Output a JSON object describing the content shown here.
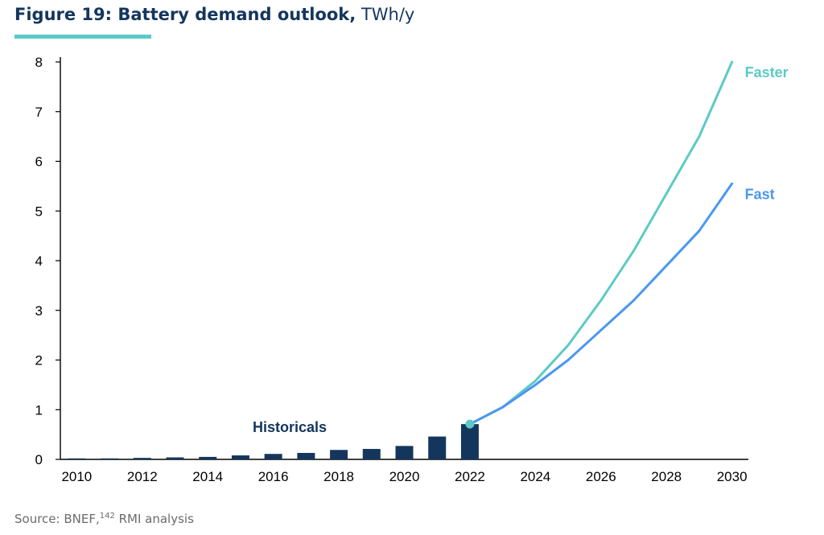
{
  "figure": {
    "title_bold": "Figure 19: Battery demand outlook,",
    "title_unit": "TWh/y"
  },
  "source": {
    "prefix": "Source: BNEF,",
    "ref": "142",
    "suffix": " RMI analysis"
  },
  "colors": {
    "bars": "#14365d",
    "faster": "#5ccac6",
    "fast": "#4a97f0",
    "axis": "#000000",
    "title_rule": "#5ccac6"
  },
  "chart_data": {
    "type": "bar+line",
    "xlim": [
      2010,
      2030
    ],
    "ylim": [
      0,
      8
    ],
    "grid": false,
    "x_ticks": [
      "2010",
      "2012",
      "2014",
      "2016",
      "2018",
      "2020",
      "2022",
      "2024",
      "2026",
      "2028",
      "2030"
    ],
    "y_ticks": [
      "0",
      "1",
      "2",
      "3",
      "4",
      "5",
      "6",
      "7",
      "8"
    ],
    "bars": {
      "label": "Historicals",
      "x": [
        2010,
        2011,
        2012,
        2013,
        2014,
        2015,
        2016,
        2017,
        2018,
        2019,
        2020,
        2021,
        2022
      ],
      "values": [
        0.02,
        0.02,
        0.03,
        0.04,
        0.05,
        0.08,
        0.11,
        0.13,
        0.19,
        0.21,
        0.27,
        0.46,
        0.71
      ]
    },
    "series": [
      {
        "name": "Faster",
        "x": [
          2022,
          2023,
          2024,
          2025,
          2026,
          2027,
          2028,
          2029,
          2030
        ],
        "values": [
          0.71,
          1.05,
          1.58,
          2.3,
          3.2,
          4.2,
          5.35,
          6.5,
          8.0
        ]
      },
      {
        "name": "Fast",
        "x": [
          2022,
          2023,
          2024,
          2025,
          2026,
          2027,
          2028,
          2029,
          2030
        ],
        "values": [
          0.71,
          1.05,
          1.5,
          2.0,
          2.6,
          3.2,
          3.9,
          4.6,
          5.55
        ]
      }
    ]
  }
}
